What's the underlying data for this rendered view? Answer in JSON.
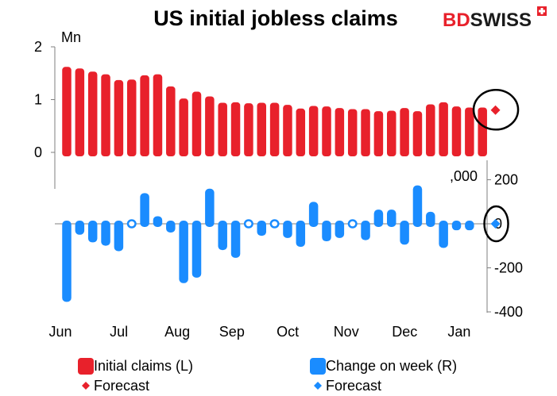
{
  "title": "US initial jobless claims",
  "logo": {
    "text_a": "BD",
    "text_b": "SWISS",
    "color_a": "#e8212b",
    "color_b": "#1a1a1a"
  },
  "colors": {
    "claims": "#e8212b",
    "change": "#1a8cff"
  },
  "chart_data": [
    {
      "type": "bar",
      "name": "top",
      "unit_label": "Mn",
      "ylim": [
        0,
        2
      ],
      "yticks": [
        "0",
        "1",
        "2"
      ],
      "axis_side": "left",
      "series": [
        {
          "name": "Initial claims (L)",
          "values": [
            1.62,
            1.59,
            1.53,
            1.48,
            1.37,
            1.38,
            1.46,
            1.48,
            1.25,
            1.02,
            1.15,
            1.06,
            0.94,
            0.95,
            0.93,
            0.94,
            0.94,
            0.9,
            0.83,
            0.88,
            0.87,
            0.84,
            0.82,
            0.82,
            0.78,
            0.79,
            0.84,
            0.78,
            0.91,
            0.95,
            0.87,
            0.85,
            0.85
          ]
        },
        {
          "name": "Forecast",
          "index": 33,
          "value": 0.8
        }
      ]
    },
    {
      "type": "bar",
      "name": "bottom",
      "unit_label": ",000",
      "ylim": [
        -400,
        200
      ],
      "yticks": [
        "200",
        "0",
        "-200",
        "-400"
      ],
      "axis_side": "right",
      "series": [
        {
          "name": "Change on week (R)",
          "values": [
            -340,
            -35,
            -70,
            -85,
            -110,
            0,
            125,
            20,
            -25,
            -255,
            -230,
            145,
            -105,
            -140,
            10,
            -40,
            10,
            -50,
            -90,
            85,
            -65,
            -50,
            -10,
            -60,
            50,
            50,
            -80,
            160,
            40,
            -95,
            -15,
            -15
          ]
        },
        {
          "name": "Forecast",
          "index": 33,
          "value": 0
        }
      ]
    }
  ],
  "x_labels": [
    {
      "label": "Jun",
      "index": 0
    },
    {
      "label": "Jul",
      "index": 4.5
    },
    {
      "label": "Aug",
      "index": 9
    },
    {
      "label": "Sep",
      "index": 13.2
    },
    {
      "label": "Oct",
      "index": 17.5
    },
    {
      "label": "Nov",
      "index": 22
    },
    {
      "label": "Dec",
      "index": 26.5
    },
    {
      "label": "Jan",
      "index": 30.7
    }
  ],
  "legend": [
    {
      "label": "Initial claims (L)",
      "marker": "bar",
      "color": "#e8212b"
    },
    {
      "label": "Change on week (R)",
      "marker": "bar",
      "color": "#1a8cff"
    },
    {
      "label": "Forecast",
      "marker": "diamond",
      "color": "#e8212b"
    },
    {
      "label": "Forecast",
      "marker": "diamond",
      "color": "#1a8cff"
    }
  ]
}
